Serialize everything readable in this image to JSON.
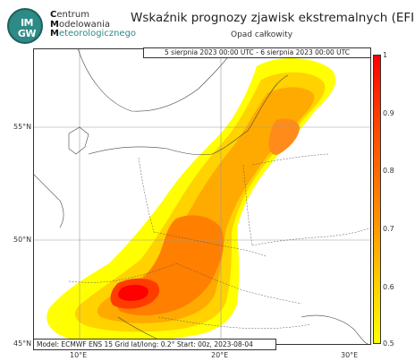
{
  "header": {
    "logo_text_line1": "IM",
    "logo_text_line2": "GW",
    "org_line1_cap": "C",
    "org_line1_rest": "entrum",
    "org_line2_cap": "M",
    "org_line2_rest": "odelowania",
    "org_line3_cap": "M",
    "org_line3_rest": "eteorologicznego",
    "title": "Wskaźnik prognozy zjawisk ekstremalnych (EFI)",
    "subtitle": "Opad całkowity"
  },
  "map": {
    "valid_period": "5 sierpnia 2023 00:00 UTC - 6 sierpnia 2023 00:00 UTC",
    "info": "Model: ECMWF  ENS 15  Grid lat/long: 0.2°  Start: 00z, 2023-08-04",
    "lat_labels": [
      "55°N",
      "50°N",
      "45°N"
    ],
    "lon_labels": [
      "10°E",
      "20°E",
      "30°E"
    ]
  },
  "colorbar": {
    "ticks": [
      "1",
      "0.9",
      "0.8",
      "0.7",
      "0.6",
      "0.5"
    ],
    "colors": [
      "#ff0000",
      "#ff3c00",
      "#ff6a00",
      "#ff9900",
      "#ffc000",
      "#ffe000",
      "#ffff00"
    ]
  }
}
